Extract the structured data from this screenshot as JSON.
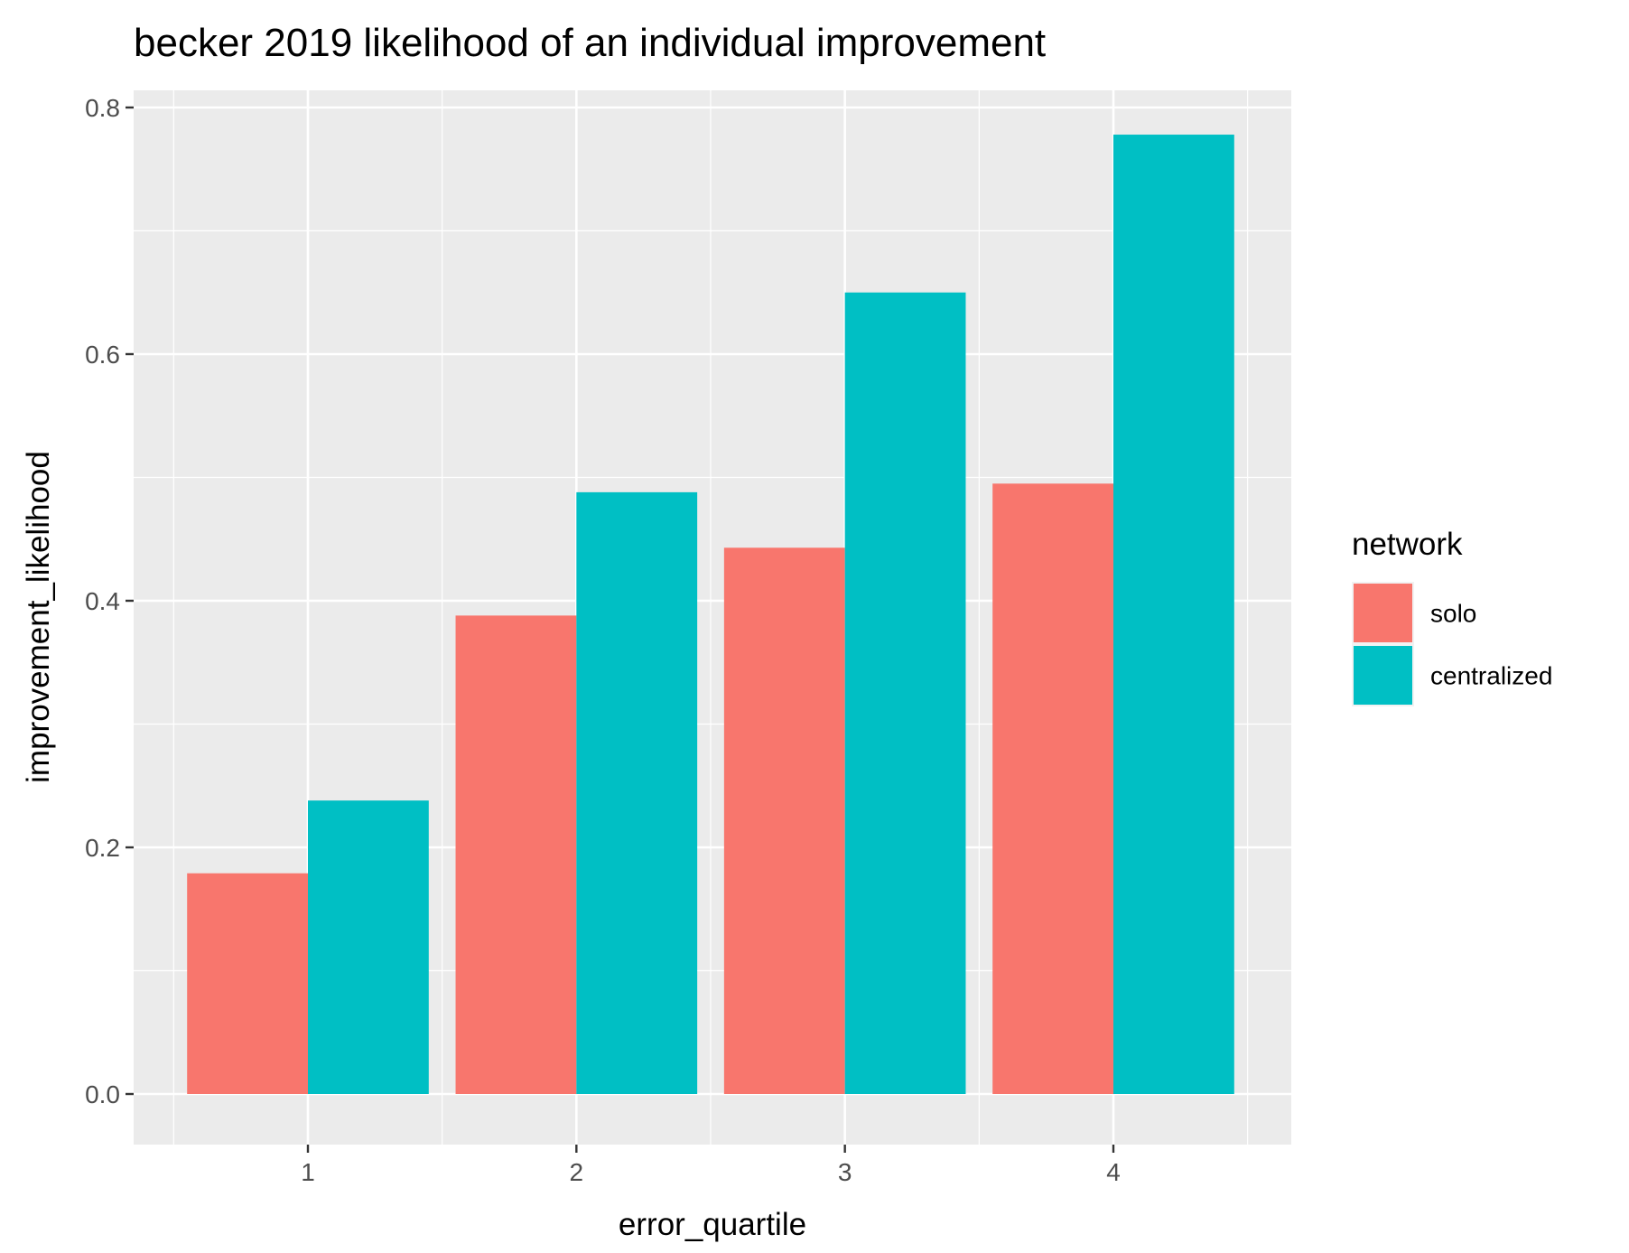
{
  "chart_data": {
    "type": "bar",
    "title": "becker 2019 likelihood of an individual improvement",
    "xlabel": "error_quartile",
    "ylabel": "improvement_likelihood",
    "categories": [
      "1",
      "2",
      "3",
      "4"
    ],
    "series": [
      {
        "name": "solo",
        "color": "#F8766D",
        "values": [
          0.179,
          0.388,
          0.443,
          0.495
        ]
      },
      {
        "name": "centralized",
        "color": "#00BFC4",
        "values": [
          0.238,
          0.488,
          0.65,
          0.778
        ]
      }
    ],
    "ylim": [
      0,
      0.8
    ],
    "yticks": [
      0.0,
      0.2,
      0.4,
      0.6,
      0.8
    ],
    "ytick_labels": [
      "0.0",
      "0.2",
      "0.4",
      "0.6",
      "0.8"
    ],
    "grid": true,
    "legend": {
      "title": "network",
      "position": "right"
    },
    "panel_background": "#EBEBEB",
    "grid_color": "#FFFFFF"
  }
}
